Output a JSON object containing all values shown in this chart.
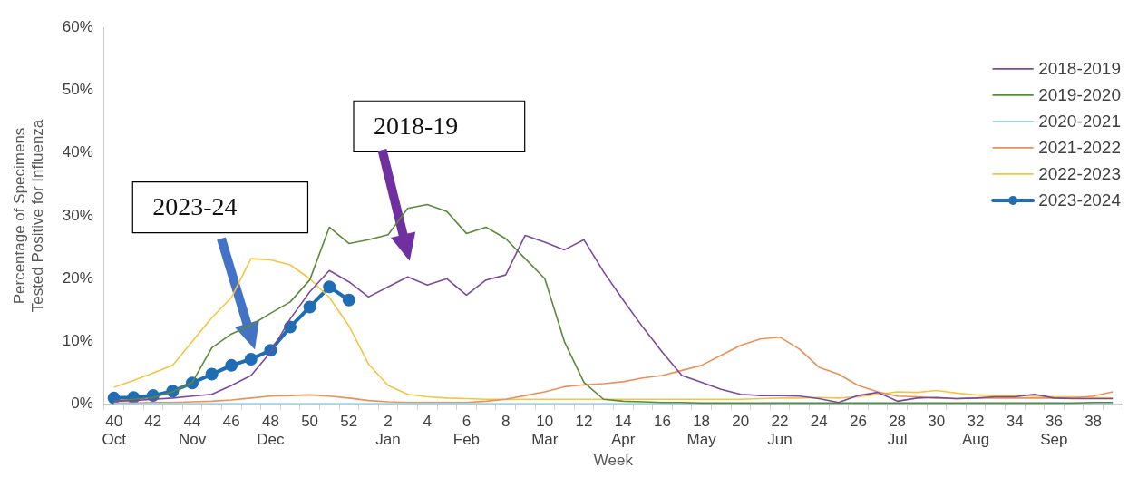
{
  "chart_data": {
    "type": "line",
    "xlabel": "Week",
    "ylabel": "Percentage of Specimens\nTested Positive for Influenza",
    "categories": [
      "40\nOct",
      null,
      "42",
      null,
      "44\nNov",
      null,
      "46",
      null,
      "48\nDec",
      null,
      "50",
      null,
      "52",
      null,
      "2\nJan",
      null,
      "4",
      null,
      "6\nFeb",
      null,
      "8",
      null,
      "10\nMar",
      null,
      "12",
      null,
      "14\nApr",
      null,
      "16",
      null,
      "18\nMay",
      null,
      "20",
      null,
      "22\nJun",
      null,
      "24",
      null,
      "26",
      null,
      "28\nJul",
      null,
      "30",
      null,
      "32\nAug",
      null,
      "34",
      null,
      "36\nSep",
      null,
      "38",
      null
    ],
    "series": [
      {
        "name": "2018-2019",
        "color": "#7b4a9e",
        "marker": "none",
        "values": [
          0.5,
          0.6,
          0.8,
          1.0,
          1.3,
          1.6,
          3.0,
          4.6,
          8.3,
          13.6,
          17.9,
          21.3,
          19.5,
          17.1,
          18.7,
          20.3,
          19.0,
          20.0,
          17.4,
          19.8,
          20.6,
          26.9,
          25.8,
          24.6,
          26.2,
          21.1,
          16.6,
          12.3,
          8.3,
          4.6,
          3.5,
          2.4,
          1.6,
          1.4,
          1.4,
          1.3,
          0.9,
          0.3,
          1.4,
          1.9,
          0.5,
          1.0,
          1.1,
          0.9,
          1.0,
          1.2,
          1.2,
          1.6,
          1.0,
          0.9,
          0.9,
          0.9
        ]
      },
      {
        "name": "2019-2020",
        "color": "#5a8a3a",
        "marker": "none",
        "values": [
          0.5,
          0.8,
          1.1,
          2.0,
          3.5,
          9.0,
          11.2,
          12.6,
          14.5,
          16.3,
          19.8,
          28.2,
          25.6,
          26.2,
          27.0,
          31.2,
          31.8,
          30.7,
          27.2,
          28.2,
          26.4,
          23.2,
          20.0,
          10.0,
          3.5,
          0.8,
          0.5,
          0.4,
          0.3,
          0.3,
          0.2,
          0.2,
          0.2,
          0.2,
          0.2,
          0.2,
          0.2,
          0.2,
          0.2,
          0.2,
          0.2,
          0.2,
          0.2,
          0.2,
          0.2,
          0.2,
          0.2,
          0.2,
          0.2,
          0.2,
          0.3,
          0.3
        ]
      },
      {
        "name": "2020-2021",
        "color": "#9dd3ea",
        "marker": "none",
        "values": [
          0.1,
          0.1,
          0.1,
          0.1,
          0.1,
          0.1,
          0.1,
          0.1,
          0.1,
          0.1,
          0.1,
          0.1,
          0.1,
          0.1,
          0.1,
          0.1,
          0.1,
          0.1,
          0.1,
          0.1,
          0.1,
          0.1,
          0.1,
          0.1,
          0.1,
          0.1,
          0.1,
          0.1,
          0.1,
          0.1,
          0.1,
          0.1,
          0.1,
          0.1,
          0.1,
          0.1,
          0.1,
          0.1,
          0.1,
          0.1,
          0.1,
          0.1,
          0.1,
          0.1,
          0.1,
          0.1,
          0.1,
          0.1,
          0.1,
          0.1,
          0.1,
          0.1
        ]
      },
      {
        "name": "2021-2022",
        "color": "#e8925a",
        "marker": "none",
        "values": [
          0.2,
          0.2,
          0.3,
          0.3,
          0.4,
          0.5,
          0.7,
          1.0,
          1.3,
          1.4,
          1.5,
          1.3,
          1.0,
          0.6,
          0.4,
          0.3,
          0.3,
          0.3,
          0.3,
          0.5,
          0.8,
          1.4,
          2.0,
          2.8,
          3.1,
          3.3,
          3.6,
          4.2,
          4.6,
          5.4,
          6.2,
          7.8,
          9.4,
          10.4,
          10.7,
          8.8,
          5.9,
          4.8,
          3.0,
          2.0,
          1.3,
          1.2,
          1.0,
          0.9,
          1.0,
          1.0,
          1.0,
          1.0,
          1.0,
          1.0,
          1.3,
          2.0
        ]
      },
      {
        "name": "2022-2023",
        "color": "#f5c542",
        "marker": "none",
        "values": [
          2.7,
          3.8,
          5.0,
          6.2,
          10.0,
          13.8,
          17.0,
          23.2,
          23.0,
          22.2,
          20.0,
          17.0,
          12.5,
          6.4,
          3.0,
          1.6,
          1.2,
          1.0,
          0.9,
          0.8,
          0.8,
          0.8,
          0.8,
          0.8,
          0.8,
          0.8,
          0.8,
          0.8,
          0.8,
          0.8,
          0.8,
          0.8,
          0.8,
          0.9,
          1.0,
          1.0,
          1.1,
          1.0,
          1.2,
          1.6,
          2.0,
          1.9,
          2.2,
          1.8,
          1.5,
          1.4,
          1.4,
          1.3,
          1.2,
          1.2,
          1.1,
          1.0
        ]
      },
      {
        "name": "2023-2024",
        "color": "#1f6eb5",
        "marker": "circle",
        "values": [
          1.0,
          1.1,
          1.4,
          2.1,
          3.4,
          4.8,
          6.2,
          7.2,
          8.6,
          12.3,
          15.5,
          18.7,
          16.6,
          null,
          null,
          null,
          null,
          null,
          null,
          null,
          null,
          null,
          null,
          null,
          null,
          null,
          null,
          null,
          null,
          null,
          null,
          null,
          null,
          null,
          null,
          null,
          null,
          null,
          null,
          null,
          null,
          null,
          null,
          null,
          null,
          null,
          null,
          null,
          null,
          null,
          null,
          null
        ]
      }
    ],
    "ylim": [
      0,
      60
    ],
    "yticks": [
      {
        "value": 0,
        "label": "0%"
      },
      {
        "value": 10,
        "label": "10%"
      },
      {
        "value": 20,
        "label": "20%"
      },
      {
        "value": 30,
        "label": "30%"
      },
      {
        "value": 40,
        "label": "40%"
      },
      {
        "value": 50,
        "label": "50%"
      },
      {
        "value": 60,
        "label": "60%"
      }
    ],
    "grid": false,
    "legend": "top right",
    "annotations": [
      "2023-24",
      "2018-19"
    ]
  }
}
